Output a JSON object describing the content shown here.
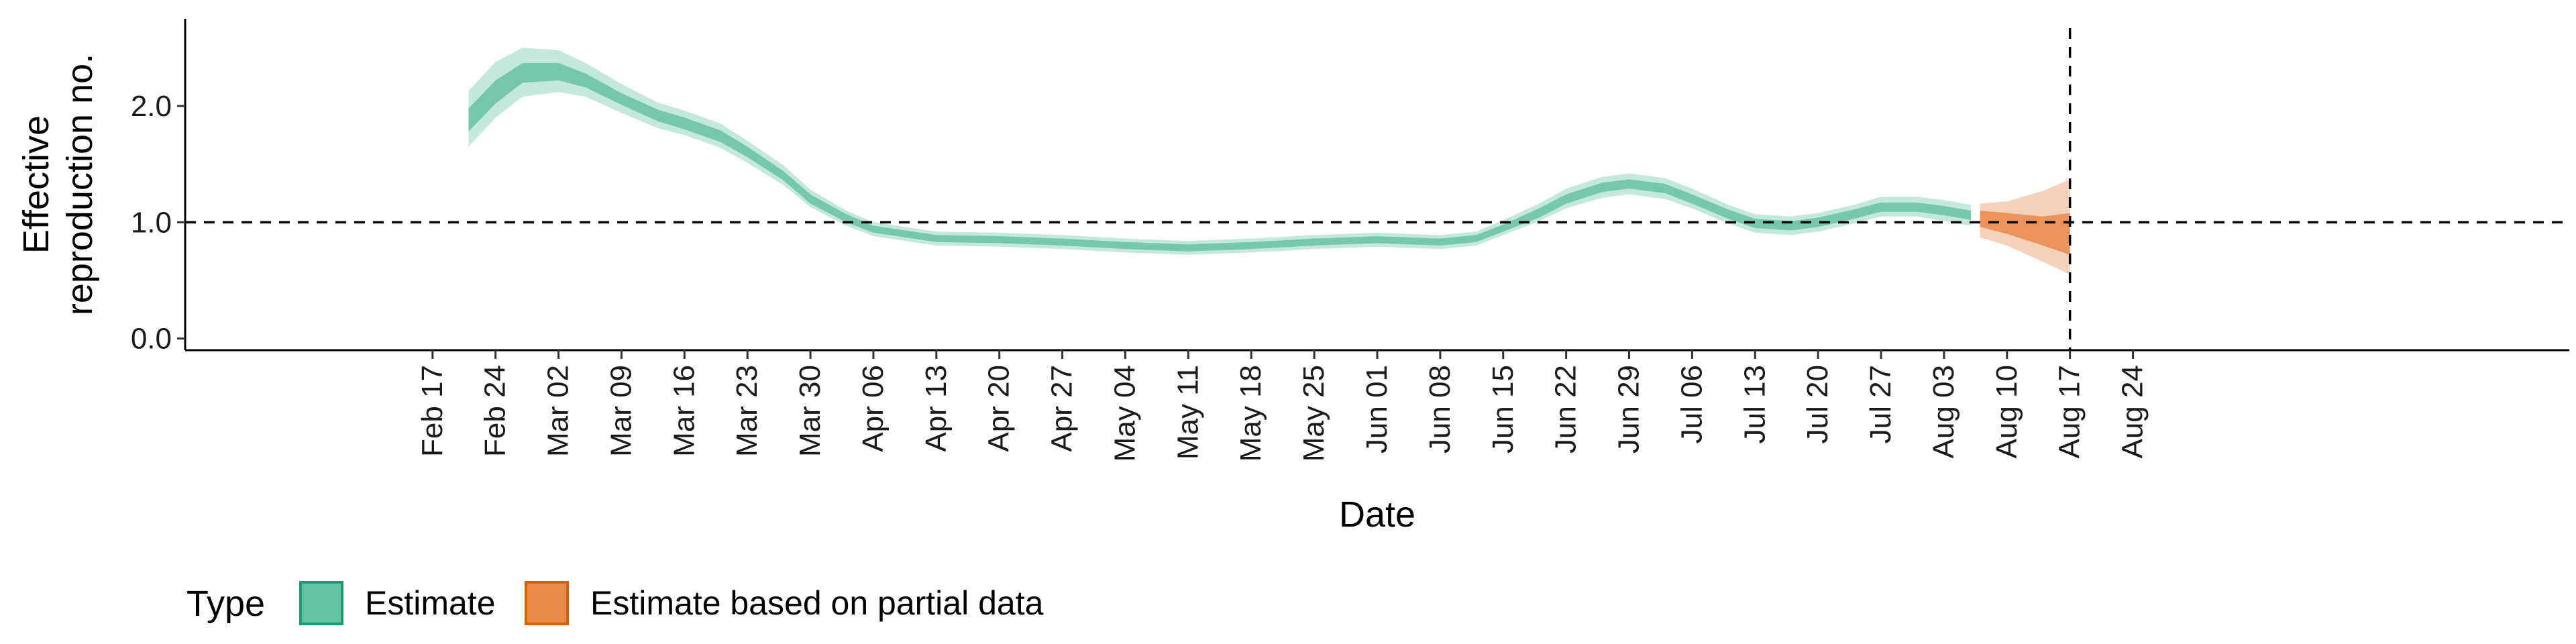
{
  "chart_data": {
    "type": "area",
    "xlabel": "Date",
    "ylabel_lines": [
      "Effective",
      "reproduction no."
    ],
    "y_ticks": [
      0.0,
      1.0,
      2.0
    ],
    "y_tick_labels": [
      "0.0",
      "1.0",
      "2.0"
    ],
    "ylim": [
      -0.1,
      2.75
    ],
    "x_ticks": [
      "Feb 17",
      "Feb 24",
      "Mar 02",
      "Mar 09",
      "Mar 16",
      "Mar 23",
      "Mar 30",
      "Apr 06",
      "Apr 13",
      "Apr 20",
      "Apr 27",
      "May 04",
      "May 11",
      "May 18",
      "May 25",
      "Jun 01",
      "Jun 08",
      "Jun 15",
      "Jun 22",
      "Jun 29",
      "Jul 06",
      "Jul 13",
      "Jul 20",
      "Jul 27",
      "Aug 03",
      "Aug 10",
      "Aug 17",
      "Aug 24"
    ],
    "xlim_days": [
      -27.5,
      237.5
    ],
    "reference_line_y": 1.0,
    "reference_line_x": "Aug 17",
    "legend": {
      "title": "Type",
      "position": "bottom-left",
      "entries": [
        {
          "label": "Estimate",
          "fill": "#66c2a5",
          "stroke": "#1b9e77"
        },
        {
          "label": "Estimate based on partial data",
          "fill": "#e78a4a",
          "stroke": "#d95f02"
        }
      ]
    },
    "series": [
      {
        "name": "Estimate",
        "color": "#66c2a5",
        "points": [
          {
            "date": "Feb 21",
            "median": 1.88,
            "lo50": 1.78,
            "hi50": 1.98,
            "lo90": 1.65,
            "hi90": 2.13
          },
          {
            "date": "Feb 24",
            "median": 2.12,
            "lo50": 2.02,
            "hi50": 2.22,
            "lo90": 1.9,
            "hi90": 2.38
          },
          {
            "date": "Feb 27",
            "median": 2.29,
            "lo50": 2.2,
            "hi50": 2.37,
            "lo90": 2.08,
            "hi90": 2.5
          },
          {
            "date": "Mar 02",
            "median": 2.3,
            "lo50": 2.22,
            "hi50": 2.37,
            "lo90": 2.12,
            "hi90": 2.48
          },
          {
            "date": "Mar 05",
            "median": 2.22,
            "lo50": 2.16,
            "hi50": 2.28,
            "lo90": 2.08,
            "hi90": 2.37
          },
          {
            "date": "Mar 09",
            "median": 2.06,
            "lo50": 2.01,
            "hi50": 2.11,
            "lo90": 1.94,
            "hi90": 2.19
          },
          {
            "date": "Mar 13",
            "median": 1.92,
            "lo50": 1.87,
            "hi50": 1.97,
            "lo90": 1.81,
            "hi90": 2.03
          },
          {
            "date": "Mar 16",
            "median": 1.85,
            "lo50": 1.8,
            "hi50": 1.9,
            "lo90": 1.75,
            "hi90": 1.96
          },
          {
            "date": "Mar 20",
            "median": 1.74,
            "lo50": 1.69,
            "hi50": 1.79,
            "lo90": 1.64,
            "hi90": 1.85
          },
          {
            "date": "Mar 23",
            "median": 1.6,
            "lo50": 1.56,
            "hi50": 1.65,
            "lo90": 1.51,
            "hi90": 1.7
          },
          {
            "date": "Mar 27",
            "median": 1.4,
            "lo50": 1.36,
            "hi50": 1.44,
            "lo90": 1.32,
            "hi90": 1.49
          },
          {
            "date": "Mar 30",
            "median": 1.2,
            "lo50": 1.16,
            "hi50": 1.24,
            "lo90": 1.13,
            "hi90": 1.28
          },
          {
            "date": "Apr 03",
            "median": 1.03,
            "lo50": 1.0,
            "hi50": 1.07,
            "lo90": 0.97,
            "hi90": 1.1
          },
          {
            "date": "Apr 06",
            "median": 0.94,
            "lo50": 0.91,
            "hi50": 0.97,
            "lo90": 0.88,
            "hi90": 1.0
          },
          {
            "date": "Apr 13",
            "median": 0.86,
            "lo50": 0.83,
            "hi50": 0.89,
            "lo90": 0.8,
            "hi90": 0.92
          },
          {
            "date": "Apr 20",
            "median": 0.85,
            "lo50": 0.82,
            "hi50": 0.88,
            "lo90": 0.79,
            "hi90": 0.91
          },
          {
            "date": "Apr 27",
            "median": 0.83,
            "lo50": 0.8,
            "hi50": 0.86,
            "lo90": 0.77,
            "hi90": 0.89
          },
          {
            "date": "May 04",
            "median": 0.8,
            "lo50": 0.77,
            "hi50": 0.83,
            "lo90": 0.74,
            "hi90": 0.86
          },
          {
            "date": "May 11",
            "median": 0.78,
            "lo50": 0.75,
            "hi50": 0.81,
            "lo90": 0.72,
            "hi90": 0.84
          },
          {
            "date": "May 18",
            "median": 0.8,
            "lo50": 0.77,
            "hi50": 0.83,
            "lo90": 0.74,
            "hi90": 0.86
          },
          {
            "date": "May 25",
            "median": 0.83,
            "lo50": 0.8,
            "hi50": 0.86,
            "lo90": 0.77,
            "hi90": 0.89
          },
          {
            "date": "Jun 01",
            "median": 0.85,
            "lo50": 0.82,
            "hi50": 0.88,
            "lo90": 0.79,
            "hi90": 0.91
          },
          {
            "date": "Jun 08",
            "median": 0.83,
            "lo50": 0.8,
            "hi50": 0.86,
            "lo90": 0.77,
            "hi90": 0.89
          },
          {
            "date": "Jun 12",
            "median": 0.86,
            "lo50": 0.83,
            "hi50": 0.89,
            "lo90": 0.8,
            "hi90": 0.92
          },
          {
            "date": "Jun 15",
            "median": 0.95,
            "lo50": 0.92,
            "hi50": 0.98,
            "lo90": 0.89,
            "hi90": 1.02
          },
          {
            "date": "Jun 19",
            "median": 1.08,
            "lo50": 1.04,
            "hi50": 1.12,
            "lo90": 1.01,
            "hi90": 1.16
          },
          {
            "date": "Jun 22",
            "median": 1.2,
            "lo50": 1.16,
            "hi50": 1.24,
            "lo90": 1.12,
            "hi90": 1.29
          },
          {
            "date": "Jun 26",
            "median": 1.3,
            "lo50": 1.26,
            "hi50": 1.34,
            "lo90": 1.21,
            "hi90": 1.39
          },
          {
            "date": "Jun 29",
            "median": 1.33,
            "lo50": 1.29,
            "hi50": 1.37,
            "lo90": 1.24,
            "hi90": 1.42
          },
          {
            "date": "Jul 03",
            "median": 1.29,
            "lo50": 1.25,
            "hi50": 1.33,
            "lo90": 1.2,
            "hi90": 1.38
          },
          {
            "date": "Jul 06",
            "median": 1.2,
            "lo50": 1.16,
            "hi50": 1.24,
            "lo90": 1.12,
            "hi90": 1.29
          },
          {
            "date": "Jul 10",
            "median": 1.07,
            "lo50": 1.03,
            "hi50": 1.11,
            "lo90": 0.99,
            "hi90": 1.15
          },
          {
            "date": "Jul 13",
            "median": 0.99,
            "lo50": 0.95,
            "hi50": 1.03,
            "lo90": 0.91,
            "hi90": 1.07
          },
          {
            "date": "Jul 17",
            "median": 0.97,
            "lo50": 0.93,
            "hi50": 1.01,
            "lo90": 0.89,
            "hi90": 1.05
          },
          {
            "date": "Jul 20",
            "median": 1.0,
            "lo50": 0.96,
            "hi50": 1.04,
            "lo90": 0.92,
            "hi90": 1.08
          },
          {
            "date": "Jul 24",
            "median": 1.07,
            "lo50": 1.03,
            "hi50": 1.11,
            "lo90": 0.99,
            "hi90": 1.15
          },
          {
            "date": "Jul 27",
            "median": 1.13,
            "lo50": 1.09,
            "hi50": 1.17,
            "lo90": 1.05,
            "hi90": 1.22
          },
          {
            "date": "Jul 31",
            "median": 1.13,
            "lo50": 1.09,
            "hi50": 1.17,
            "lo90": 1.05,
            "hi90": 1.22
          },
          {
            "date": "Aug 03",
            "median": 1.1,
            "lo50": 1.06,
            "hi50": 1.14,
            "lo90": 1.01,
            "hi90": 1.19
          },
          {
            "date": "Aug 06",
            "median": 1.06,
            "lo50": 1.02,
            "hi50": 1.1,
            "lo90": 0.97,
            "hi90": 1.15
          }
        ]
      },
      {
        "name": "Estimate based on partial data",
        "color": "#e78a4a",
        "points": [
          {
            "date": "Aug 07",
            "median": 1.05,
            "lo50": 0.96,
            "hi50": 1.1,
            "lo90": 0.87,
            "hi90": 1.16
          },
          {
            "date": "Aug 10",
            "median": 1.0,
            "lo50": 0.9,
            "hi50": 1.08,
            "lo90": 0.8,
            "hi90": 1.18
          },
          {
            "date": "Aug 14",
            "median": 0.92,
            "lo50": 0.8,
            "hi50": 1.05,
            "lo90": 0.66,
            "hi90": 1.27
          },
          {
            "date": "Aug 17",
            "median": 0.85,
            "lo50": 0.72,
            "hi50": 1.08,
            "lo90": 0.55,
            "hi90": 1.37
          }
        ]
      }
    ]
  }
}
